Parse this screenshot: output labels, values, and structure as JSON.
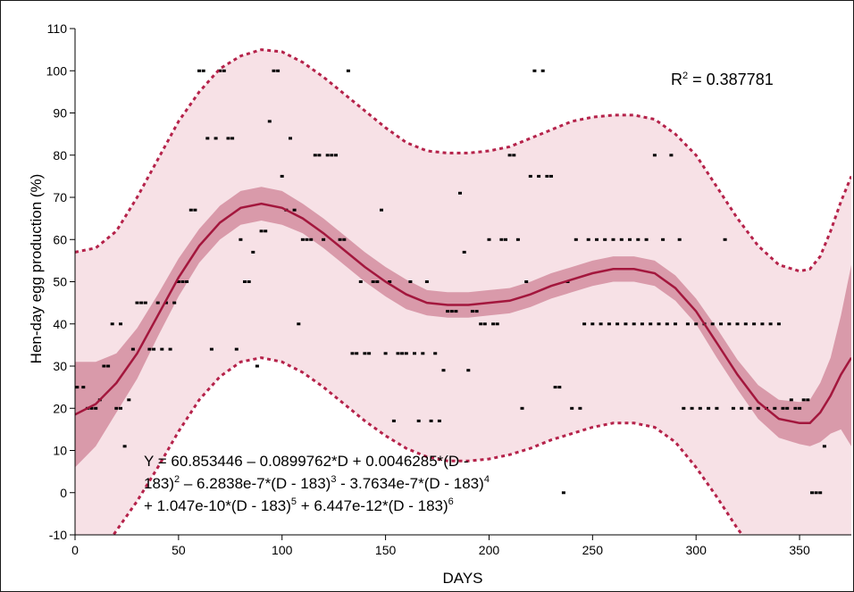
{
  "chart_data": {
    "type": "scatter",
    "title": "",
    "xlabel": "DAYS",
    "ylabel": "Hen-day egg production (%)",
    "xlim": [
      0,
      375
    ],
    "ylim": [
      -10,
      110
    ],
    "x_ticks": [
      "0",
      "50",
      "100",
      "150",
      "200",
      "250",
      "300",
      "350"
    ],
    "y_ticks": [
      "-10",
      "0",
      "10",
      "20",
      "30",
      "40",
      "50",
      "60",
      "70",
      "80",
      "90",
      "100",
      "110"
    ],
    "grid": false,
    "r2": {
      "base": "R",
      "sup": "2",
      "rest": " = 0.387781"
    },
    "equation": [
      [
        {
          "t": "Y = 60.853446 – 0.0899762*D + 0.0046285*(D -"
        }
      ],
      [
        {
          "t": "183)"
        },
        {
          "t": "2",
          "sup": true
        },
        {
          "t": " – 6.2838e-7*(D - 183)"
        },
        {
          "t": "3",
          "sup": true
        },
        {
          "t": " - 3.7634e-7*(D - 183)"
        },
        {
          "t": "4",
          "sup": true
        }
      ],
      [
        {
          "t": "+ 1.047e-10*(D - 183)"
        },
        {
          "t": "5",
          "sup": true
        },
        {
          "t": " + 6.447e-12*(D - 183)"
        },
        {
          "t": "6",
          "sup": true
        }
      ]
    ],
    "colors": {
      "fit_line": "#a3173d",
      "confidence_band": "#d99aaa",
      "prediction_band": "#f7e1e6",
      "prediction_limit": "#b5224a",
      "points": "#000000"
    },
    "series": [
      {
        "type": "line",
        "x": [
          0,
          10,
          20,
          30,
          40,
          50,
          60,
          70,
          80,
          90,
          100,
          110,
          120,
          130,
          140,
          150,
          160,
          170,
          180,
          190,
          200,
          210,
          220,
          230,
          240,
          250,
          260,
          270,
          280,
          290,
          300,
          310,
          320,
          330,
          340,
          350,
          355,
          360,
          365,
          370,
          375
        ],
        "y": [
          18.5,
          21,
          26,
          33,
          42,
          51,
          58.5,
          64,
          67.5,
          68.5,
          67.5,
          65,
          61.5,
          57.5,
          53.5,
          50,
          47,
          45,
          44.5,
          44.5,
          45,
          45.5,
          47,
          49,
          50.5,
          52,
          53,
          53,
          52,
          48.5,
          43,
          35.5,
          28,
          21.5,
          17.5,
          16.5,
          16.5,
          19,
          23,
          28,
          32
        ]
      },
      {
        "type": "band",
        "x": [
          0,
          10,
          20,
          30,
          40,
          50,
          60,
          70,
          80,
          90,
          100,
          110,
          120,
          130,
          140,
          150,
          160,
          170,
          180,
          190,
          200,
          210,
          220,
          230,
          240,
          250,
          260,
          270,
          280,
          290,
          300,
          310,
          320,
          330,
          340,
          350,
          355,
          360,
          365,
          370,
          375
        ],
        "upper": [
          31,
          31,
          33,
          39,
          47,
          55.5,
          62.5,
          68,
          71.5,
          72.5,
          71.5,
          68.5,
          65,
          61,
          57,
          53.5,
          50.5,
          48,
          47.5,
          47.5,
          48,
          48.5,
          50,
          52,
          53.5,
          55,
          56,
          56,
          55,
          51.5,
          46,
          39,
          31.5,
          25.5,
          22,
          21.5,
          22,
          26,
          32,
          42,
          54
        ]
      },
      {
        "type": "band",
        "x": [
          0,
          10,
          20,
          30,
          40,
          50,
          60,
          70,
          80,
          90,
          100,
          110,
          120,
          130,
          140,
          150,
          160,
          170,
          180,
          190,
          200,
          210,
          220,
          230,
          240,
          250,
          260,
          270,
          280,
          290,
          300,
          310,
          320,
          330,
          340,
          350,
          355,
          360,
          365,
          370,
          375
        ],
        "lower": [
          6,
          11,
          19,
          27,
          37,
          46.5,
          54.5,
          60,
          63.5,
          64.5,
          63.5,
          61.5,
          58,
          54,
          50,
          46.5,
          43.5,
          42,
          41.5,
          41.5,
          42,
          42.5,
          44,
          46,
          47.5,
          49,
          50,
          50,
          49,
          45.5,
          40,
          32,
          24.5,
          17.5,
          13,
          11.5,
          11,
          12,
          14,
          15,
          11
        ]
      },
      {
        "type": "dashed",
        "x": [
          0,
          10,
          20,
          30,
          40,
          50,
          60,
          70,
          80,
          90,
          100,
          110,
          120,
          130,
          140,
          150,
          160,
          170,
          180,
          190,
          200,
          210,
          220,
          230,
          240,
          250,
          260,
          270,
          280,
          290,
          300,
          310,
          320,
          330,
          340,
          350,
          355,
          360,
          365,
          370,
          375
        ],
        "upper": [
          57,
          58,
          62,
          70,
          79,
          88,
          95,
          100.5,
          103.5,
          105,
          104.5,
          102,
          98.5,
          94.5,
          90.5,
          86.5,
          83,
          81,
          80.5,
          80.5,
          81,
          82,
          84,
          86,
          88,
          89,
          89.5,
          89.5,
          88.5,
          85,
          80,
          72.5,
          65,
          58.5,
          54,
          52.5,
          53,
          56,
          62,
          69,
          75
        ]
      },
      {
        "type": "dashed",
        "x": [
          0,
          10,
          20,
          30,
          40,
          50,
          60,
          70,
          80,
          90,
          100,
          110,
          120,
          130,
          140,
          150,
          160,
          170,
          180,
          190,
          200,
          210,
          220,
          230,
          240,
          250,
          260,
          270,
          280,
          290,
          300,
          310,
          320,
          330,
          340,
          350,
          355,
          360,
          365,
          370,
          375
        ],
        "lower": [
          -22,
          -16,
          -9,
          -2,
          6,
          14.5,
          22,
          27.5,
          31,
          32,
          31,
          28.5,
          25,
          21,
          17,
          13.5,
          10.5,
          8.5,
          7.5,
          7.5,
          8,
          9,
          10.5,
          12.5,
          14,
          15.5,
          16.5,
          16.5,
          15.5,
          12,
          6,
          -1,
          -8.5,
          -15,
          -19,
          -20.5,
          -21,
          -20,
          -18,
          -16,
          -14
        ]
      }
    ],
    "points": [
      [
        1,
        25
      ],
      [
        4,
        25
      ],
      [
        6,
        20
      ],
      [
        8,
        20
      ],
      [
        10,
        20
      ],
      [
        12,
        22
      ],
      [
        14,
        30
      ],
      [
        16,
        30
      ],
      [
        18,
        40
      ],
      [
        20,
        20
      ],
      [
        22,
        20
      ],
      [
        22,
        40
      ],
      [
        24,
        11
      ],
      [
        26,
        22
      ],
      [
        28,
        34
      ],
      [
        30,
        45
      ],
      [
        32,
        45
      ],
      [
        34,
        45
      ],
      [
        36,
        34
      ],
      [
        38,
        34
      ],
      [
        40,
        45
      ],
      [
        42,
        34
      ],
      [
        44,
        45
      ],
      [
        46,
        34
      ],
      [
        48,
        45
      ],
      [
        50,
        50
      ],
      [
        52,
        50
      ],
      [
        54,
        50
      ],
      [
        56,
        67
      ],
      [
        58,
        67
      ],
      [
        60,
        100
      ],
      [
        62,
        100
      ],
      [
        64,
        84
      ],
      [
        66,
        34
      ],
      [
        68,
        84
      ],
      [
        70,
        100
      ],
      [
        72,
        100
      ],
      [
        74,
        84
      ],
      [
        76,
        84
      ],
      [
        78,
        34
      ],
      [
        80,
        60
      ],
      [
        82,
        50
      ],
      [
        84,
        50
      ],
      [
        86,
        57
      ],
      [
        88,
        30
      ],
      [
        90,
        62
      ],
      [
        92,
        62
      ],
      [
        94,
        88
      ],
      [
        96,
        100
      ],
      [
        98,
        100
      ],
      [
        100,
        75
      ],
      [
        102,
        67
      ],
      [
        104,
        84
      ],
      [
        106,
        67
      ],
      [
        108,
        40
      ],
      [
        110,
        60
      ],
      [
        112,
        60
      ],
      [
        114,
        60
      ],
      [
        116,
        80
      ],
      [
        118,
        80
      ],
      [
        120,
        60
      ],
      [
        122,
        80
      ],
      [
        124,
        80
      ],
      [
        126,
        80
      ],
      [
        128,
        60
      ],
      [
        130,
        60
      ],
      [
        132,
        100
      ],
      [
        134,
        33
      ],
      [
        136,
        33
      ],
      [
        138,
        50
      ],
      [
        140,
        33
      ],
      [
        142,
        33
      ],
      [
        144,
        50
      ],
      [
        146,
        50
      ],
      [
        148,
        67
      ],
      [
        150,
        33
      ],
      [
        152,
        50
      ],
      [
        154,
        17
      ],
      [
        156,
        33
      ],
      [
        158,
        33
      ],
      [
        160,
        33
      ],
      [
        162,
        50
      ],
      [
        164,
        33
      ],
      [
        166,
        17
      ],
      [
        168,
        33
      ],
      [
        170,
        50
      ],
      [
        172,
        17
      ],
      [
        174,
        33
      ],
      [
        176,
        17
      ],
      [
        178,
        29
      ],
      [
        180,
        43
      ],
      [
        182,
        43
      ],
      [
        184,
        43
      ],
      [
        186,
        71
      ],
      [
        188,
        57
      ],
      [
        190,
        29
      ],
      [
        192,
        43
      ],
      [
        194,
        43
      ],
      [
        196,
        40
      ],
      [
        198,
        40
      ],
      [
        200,
        60
      ],
      [
        202,
        40
      ],
      [
        204,
        40
      ],
      [
        206,
        60
      ],
      [
        208,
        60
      ],
      [
        210,
        80
      ],
      [
        212,
        80
      ],
      [
        214,
        60
      ],
      [
        216,
        20
      ],
      [
        218,
        50
      ],
      [
        220,
        75
      ],
      [
        222,
        100
      ],
      [
        224,
        75
      ],
      [
        226,
        100
      ],
      [
        228,
        75
      ],
      [
        230,
        75
      ],
      [
        232,
        25
      ],
      [
        234,
        25
      ],
      [
        236,
        0
      ],
      [
        238,
        50
      ],
      [
        240,
        20
      ],
      [
        242,
        60
      ],
      [
        244,
        20
      ],
      [
        246,
        40
      ],
      [
        248,
        60
      ],
      [
        250,
        40
      ],
      [
        252,
        60
      ],
      [
        254,
        40
      ],
      [
        256,
        60
      ],
      [
        258,
        40
      ],
      [
        260,
        60
      ],
      [
        262,
        40
      ],
      [
        264,
        60
      ],
      [
        266,
        40
      ],
      [
        268,
        60
      ],
      [
        270,
        40
      ],
      [
        272,
        60
      ],
      [
        274,
        40
      ],
      [
        276,
        60
      ],
      [
        278,
        40
      ],
      [
        280,
        80
      ],
      [
        282,
        40
      ],
      [
        284,
        60
      ],
      [
        286,
        40
      ],
      [
        288,
        80
      ],
      [
        290,
        40
      ],
      [
        292,
        60
      ],
      [
        294,
        20
      ],
      [
        296,
        40
      ],
      [
        298,
        20
      ],
      [
        300,
        40
      ],
      [
        302,
        20
      ],
      [
        304,
        40
      ],
      [
        306,
        20
      ],
      [
        308,
        40
      ],
      [
        310,
        20
      ],
      [
        312,
        40
      ],
      [
        314,
        60
      ],
      [
        316,
        40
      ],
      [
        318,
        20
      ],
      [
        320,
        40
      ],
      [
        322,
        20
      ],
      [
        324,
        40
      ],
      [
        326,
        20
      ],
      [
        328,
        40
      ],
      [
        330,
        20
      ],
      [
        332,
        40
      ],
      [
        334,
        20
      ],
      [
        336,
        40
      ],
      [
        338,
        20
      ],
      [
        340,
        40
      ],
      [
        342,
        20
      ],
      [
        344,
        20
      ],
      [
        346,
        22
      ],
      [
        348,
        20
      ],
      [
        350,
        20
      ],
      [
        352,
        22
      ],
      [
        354,
        22
      ],
      [
        356,
        0
      ],
      [
        358,
        0
      ],
      [
        360,
        0
      ],
      [
        362,
        11
      ]
    ]
  }
}
